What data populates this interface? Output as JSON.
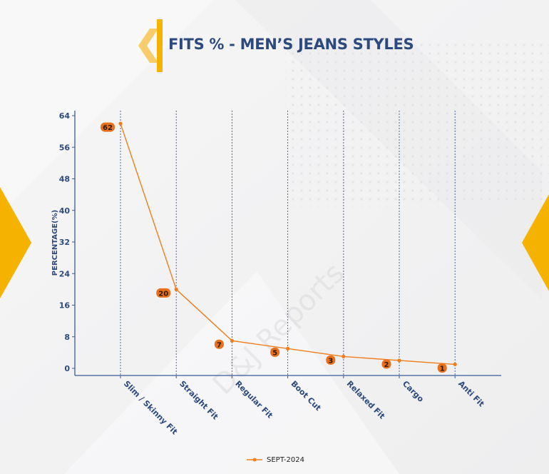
{
  "title": "FITS % - MEN’S JEANS STYLES",
  "watermark": "D&J Reports",
  "colors": {
    "accent": "#f5b300",
    "accent_light": "#f7cc6a",
    "title": "#2c4a7e",
    "line": "#f07e1c",
    "label_bg": "#e8701a",
    "axis": "#3b5b92"
  },
  "chart_data": {
    "type": "line",
    "categories": [
      "Slim / Skinny Fit",
      "Straight Fit",
      "Regular Fit",
      "Boot Cut",
      "Relaxed Fit",
      "Cargo",
      "Anti Fit"
    ],
    "series": [
      {
        "name": "SEPT-2024",
        "values": [
          62,
          20,
          7,
          5,
          3,
          2,
          1
        ]
      }
    ],
    "ylabel": "PERCENTAGE(%)",
    "xlabel": "",
    "ylim": [
      0,
      64
    ],
    "yticks": [
      0,
      8,
      16,
      24,
      32,
      40,
      48,
      56,
      64
    ],
    "grid": "vertical-dashed",
    "legend_position": "bottom-center"
  }
}
